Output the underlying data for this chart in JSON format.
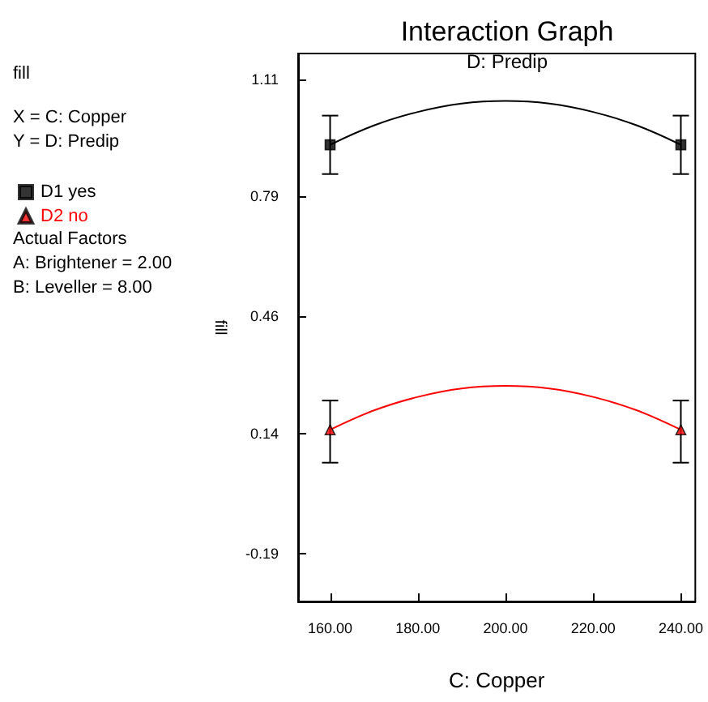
{
  "chart_data": {
    "type": "line",
    "title": "Interaction Graph",
    "subtitle": "D: Predip",
    "xlabel": "C: Copper",
    "ylabel": "fill",
    "annotations": [
      "fill",
      "X = C: Copper",
      "Y = D: Predip",
      "Actual Factors",
      "A: Brightener = 2.00",
      "B: Leveller = 8.00"
    ],
    "xlim": [
      152.7,
      243.3
    ],
    "xticks": [
      {
        "value": 160,
        "label": "160.00"
      },
      {
        "value": 180,
        "label": "180.00"
      },
      {
        "value": 200,
        "label": "200.00"
      },
      {
        "value": 220,
        "label": "220.00"
      },
      {
        "value": 240,
        "label": "240.00"
      }
    ],
    "ylim": [
      -0.32,
      1.18
    ],
    "yticks": [
      -0.19,
      0.14,
      0.46,
      0.79,
      1.11
    ],
    "grid": false,
    "legend": "left",
    "series": [
      {
        "color": "#000000",
        "marker": "none",
        "x": [
          160,
          170,
          180,
          190,
          200,
          210,
          220,
          230,
          240
        ],
        "values": [
          0.93,
          0.983,
          1.02,
          1.043,
          1.05,
          1.043,
          1.02,
          0.983,
          0.93
        ]
      },
      {
        "color": "#ff0000",
        "marker": "none",
        "x": [
          160,
          170,
          180,
          190,
          200,
          210,
          220,
          230,
          240
        ],
        "values": [
          0.15,
          0.203,
          0.24,
          0.263,
          0.27,
          0.263,
          0.24,
          0.203,
          0.15
        ]
      },
      {
        "type": "scatter",
        "name": "D1 yes",
        "color": "#000000",
        "marker": "square",
        "x": [
          160,
          240
        ],
        "values": [
          0.93,
          0.93
        ],
        "errors": [
          [
            0.85,
            1.01
          ],
          [
            0.85,
            1.01
          ]
        ]
      },
      {
        "type": "scatter",
        "name": "D2 no",
        "color": "#ff0000",
        "marker": "triangle",
        "x": [
          160,
          240
        ],
        "values": [
          0.15,
          0.15
        ],
        "errors": [
          [
            0.06,
            0.23
          ],
          [
            0.06,
            0.23
          ]
        ]
      }
    ]
  }
}
